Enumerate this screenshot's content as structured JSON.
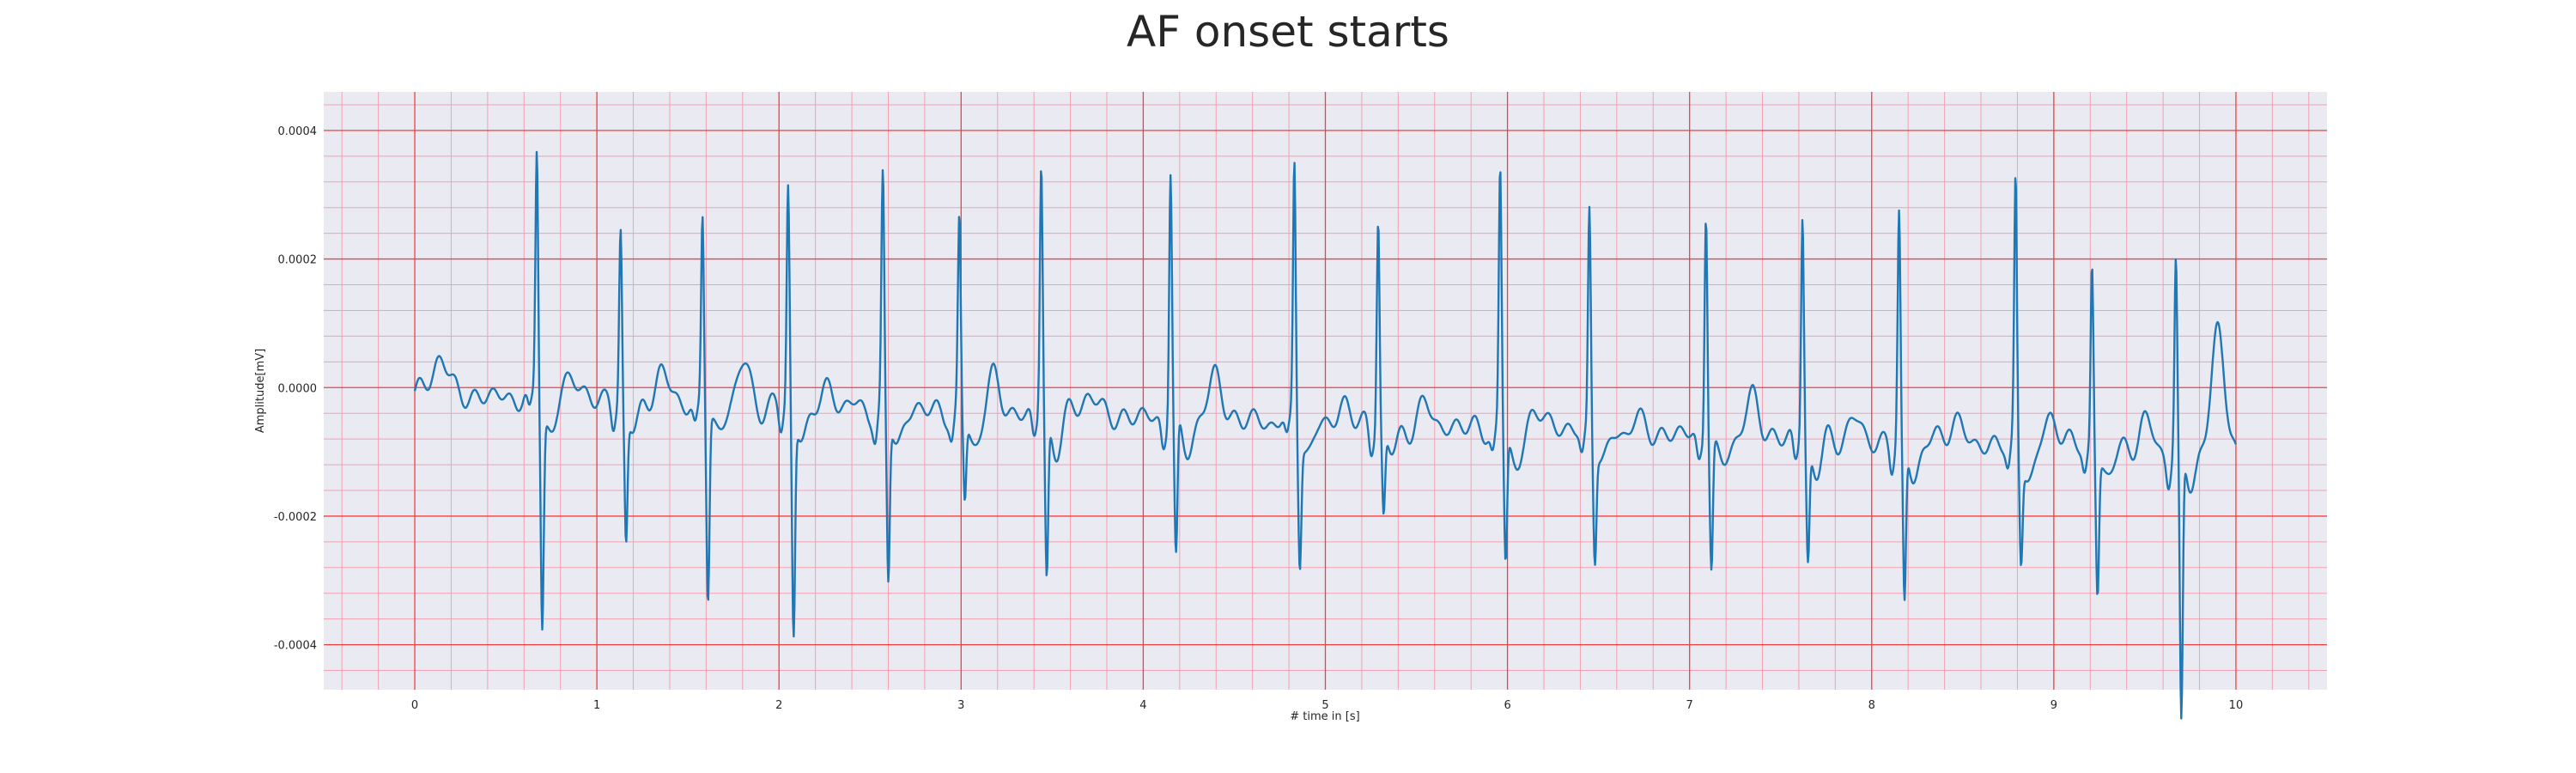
{
  "chart_data": {
    "type": "line",
    "title": "AF onset starts",
    "xlabel": "# time in [s]",
    "ylabel": "Amplitude[mV]",
    "xlim": [
      -0.5,
      10.5
    ],
    "ylim": [
      -0.00047,
      0.00046
    ],
    "xticks": [
      "0",
      "1",
      "2",
      "3",
      "4",
      "5",
      "6",
      "7",
      "8",
      "9",
      "10"
    ],
    "yticks": [
      "0.0004",
      "0.0002",
      "0.0000",
      "-0.0002",
      "-0.0004"
    ],
    "grid": true,
    "minor_grid": true,
    "colors": {
      "background": "#eaeaf2",
      "major_grid": "#f04040",
      "minor_grid": "#f4a0b0",
      "line": "#1f77b4"
    },
    "beats": [
      {
        "t": 0.67,
        "r": 0.00039,
        "s": -0.00033
      },
      {
        "t": 1.13,
        "r": 0.00027,
        "s": -0.0002
      },
      {
        "t": 1.58,
        "r": 0.0003,
        "s": -0.00029
      },
      {
        "t": 2.05,
        "r": 0.00034,
        "s": -0.00034
      },
      {
        "t": 2.57,
        "r": 0.00035,
        "s": -0.00026
      },
      {
        "t": 2.99,
        "r": 0.00029,
        "s": -0.00013
      },
      {
        "t": 3.44,
        "r": 0.00039,
        "s": -0.00025
      },
      {
        "t": 4.15,
        "r": 0.00039,
        "s": -0.00022
      },
      {
        "t": 4.83,
        "r": 0.00041,
        "s": -0.00019
      },
      {
        "t": 5.29,
        "r": 0.00033,
        "s": -0.00013
      },
      {
        "t": 5.96,
        "r": 0.0004,
        "s": -0.0002
      },
      {
        "t": 6.45,
        "r": 0.00035,
        "s": -0.00017
      },
      {
        "t": 7.09,
        "r": 0.00036,
        "s": -0.0002
      },
      {
        "t": 7.62,
        "r": 0.00035,
        "s": -0.00018
      },
      {
        "t": 8.15,
        "r": 0.00035,
        "s": -0.00025
      },
      {
        "t": 8.79,
        "r": 0.00041,
        "s": -0.00016
      },
      {
        "t": 9.21,
        "r": 0.00029,
        "s": -0.00021
      },
      {
        "t": 9.67,
        "r": 0.00029,
        "s": -0.00043
      }
    ],
    "t_waves": [
      {
        "t": 0.14,
        "a": 7e-05
      },
      {
        "t": 0.87,
        "a": 4e-05
      },
      {
        "t": 1.35,
        "a": 5e-05
      },
      {
        "t": 1.8,
        "a": 6e-05
      },
      {
        "t": 2.28,
        "a": 3e-05
      },
      {
        "t": 3.18,
        "a": 5e-05
      },
      {
        "t": 3.7,
        "a": 4e-05
      },
      {
        "t": 4.4,
        "a": 7e-05
      },
      {
        "t": 5.1,
        "a": 3e-05
      },
      {
        "t": 5.55,
        "a": 3e-05
      },
      {
        "t": 6.2,
        "a": 3e-05
      },
      {
        "t": 6.7,
        "a": 2e-05
      },
      {
        "t": 7.35,
        "a": 6e-05
      },
      {
        "t": 7.9,
        "a": 3e-05
      },
      {
        "t": 8.45,
        "a": 4e-05
      },
      {
        "t": 9.0,
        "a": 5e-05
      },
      {
        "t": 9.5,
        "a": 4e-05
      },
      {
        "t": 9.9,
        "a": 0.00019
      }
    ],
    "start": -1e-05,
    "end": -0.0001
  }
}
